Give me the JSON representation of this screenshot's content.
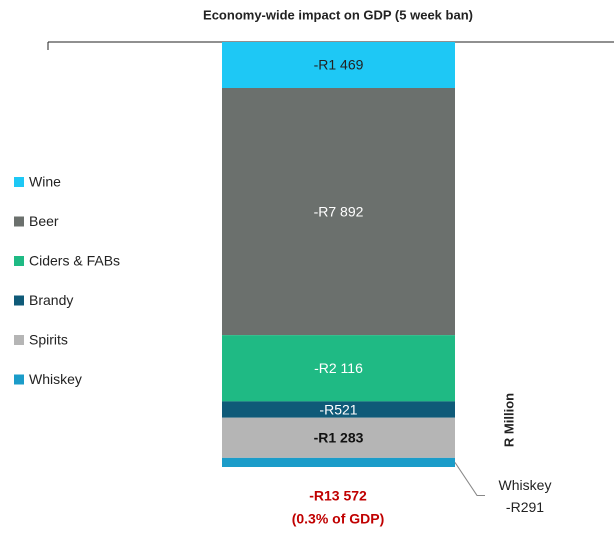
{
  "chart_data": {
    "type": "stacked_bar",
    "title": "Economy-wide impact on GDP (5 week ban)",
    "y_label": "R Million",
    "categories": [
      null
    ],
    "series": [
      {
        "name": "Wine",
        "color": "#1ec8f5",
        "values": [
          -1469
        ],
        "value_labels": [
          "-R1 469"
        ]
      },
      {
        "name": "Beer",
        "color": "#6b706d",
        "values": [
          -7892
        ],
        "value_labels": [
          "-R7 892"
        ]
      },
      {
        "name": "Ciders & FABs",
        "color": "#1fba84",
        "values": [
          -2116
        ],
        "value_labels": [
          "-R2 116"
        ]
      },
      {
        "name": "Brandy",
        "color": "#0f5a78",
        "values": [
          -521
        ],
        "value_labels": [
          "-R521"
        ]
      },
      {
        "name": "Spirits",
        "color": "#b5b5b5",
        "values": [
          -1283
        ],
        "value_labels": [
          "-R1 283"
        ]
      },
      {
        "name": "Whiskey",
        "color": "#1b9cc9",
        "values": [
          -291
        ],
        "value_labels": [
          "-R291"
        ]
      }
    ],
    "ylim": [
      -13572,
      0
    ],
    "legend": "left",
    "annotations": [
      "-R13 572",
      "(0.3% of GDP)"
    ]
  }
}
